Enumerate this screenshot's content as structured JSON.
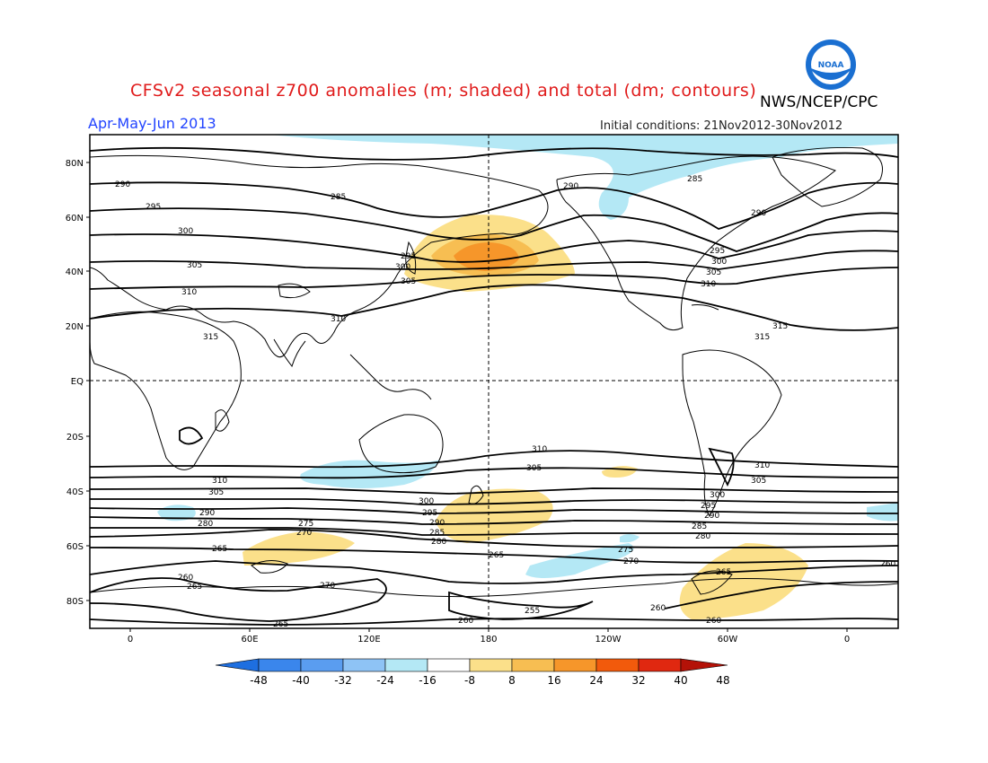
{
  "header": {
    "title": "CFSv2 seasonal z700 anomalies (m; shaded) and total (dm; contours)",
    "agency": "NWS/NCEP/CPC",
    "period": "Apr-May-Jun 2013",
    "initial_conditions": "Initial conditions: 21Nov2012-30Nov2012"
  },
  "logo": {
    "icon": "noaa-logo",
    "text": "NOAA",
    "color": "#1a6fd1"
  },
  "axes": {
    "lat_labels": [
      "80N",
      "60N",
      "40N",
      "20N",
      "EQ",
      "20S",
      "40S",
      "60S",
      "80S"
    ],
    "lon_labels": [
      "0",
      "60E",
      "120E",
      "180",
      "120W",
      "60W",
      "0"
    ]
  },
  "colorbar": {
    "labels": [
      "-48",
      "-40",
      "-32",
      "-24",
      "-16",
      "-8",
      "8",
      "16",
      "24",
      "32",
      "40",
      "48"
    ],
    "colors": [
      "#1e6fe0",
      "#3a86ec",
      "#5a9df0",
      "#8ec3f5",
      "#b4e8f5",
      "#ffffff",
      "#fbe08a",
      "#f7be52",
      "#f6962a",
      "#f25a0c",
      "#e02810",
      "#b41208"
    ]
  },
  "contours": {
    "northern": [
      "290",
      "285",
      "295",
      "300",
      "305",
      "310",
      "315"
    ],
    "southern": [
      "310",
      "305",
      "300",
      "295",
      "290",
      "285",
      "280",
      "275",
      "270",
      "265",
      "260",
      "255"
    ]
  }
}
